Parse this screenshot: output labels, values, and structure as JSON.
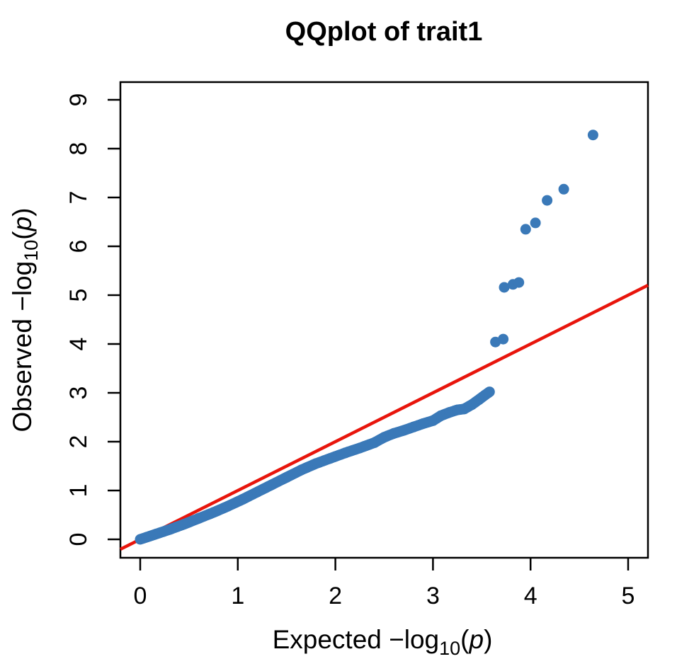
{
  "chart_data": {
    "type": "scatter",
    "title": "QQplot of trait1",
    "xlabel": "Expected −log10(p)",
    "ylabel": "Observed −log10(p)",
    "xlim": [
      0,
      5
    ],
    "ylim": [
      0,
      9
    ],
    "xticks": [
      0,
      1,
      2,
      3,
      4,
      5
    ],
    "yticks": [
      0,
      1,
      2,
      3,
      4,
      5,
      6,
      7,
      8,
      9
    ],
    "grid": false,
    "legend": "none",
    "point_color": "#3a79b8",
    "line_color": "#e8150c",
    "axis_color": "#000000",
    "band_polyline_sample": [
      [
        0.0,
        0.0
      ],
      [
        0.15,
        0.1
      ],
      [
        0.3,
        0.2
      ],
      [
        0.45,
        0.31
      ],
      [
        0.6,
        0.43
      ],
      [
        0.75,
        0.55
      ],
      [
        0.9,
        0.68
      ],
      [
        1.05,
        0.82
      ],
      [
        1.2,
        0.97
      ],
      [
        1.35,
        1.12
      ],
      [
        1.5,
        1.27
      ],
      [
        1.65,
        1.42
      ],
      [
        1.8,
        1.55
      ],
      [
        1.95,
        1.66
      ],
      [
        2.1,
        1.77
      ],
      [
        2.25,
        1.87
      ],
      [
        2.4,
        1.98
      ],
      [
        2.5,
        2.09
      ],
      [
        2.6,
        2.17
      ],
      [
        2.7,
        2.23
      ],
      [
        2.8,
        2.3
      ],
      [
        2.9,
        2.37
      ],
      [
        3.0,
        2.43
      ],
      [
        3.08,
        2.53
      ],
      [
        3.17,
        2.6
      ],
      [
        3.25,
        2.65
      ],
      [
        3.32,
        2.67
      ],
      [
        3.4,
        2.76
      ],
      [
        3.47,
        2.86
      ],
      [
        3.53,
        2.95
      ],
      [
        3.58,
        3.02
      ]
    ],
    "tail_points": [
      [
        3.64,
        4.04
      ],
      [
        3.72,
        4.1
      ],
      [
        3.73,
        5.16
      ],
      [
        3.82,
        5.22
      ],
      [
        3.88,
        5.26
      ],
      [
        3.95,
        6.35
      ],
      [
        4.05,
        6.48
      ],
      [
        4.17,
        6.94
      ],
      [
        4.34,
        7.17
      ],
      [
        4.64,
        8.28
      ]
    ],
    "reference_line": {
      "from": [
        -0.203,
        -0.203
      ],
      "to": [
        5.203,
        5.203
      ]
    }
  },
  "labels": {
    "title": "QQplot of trait1",
    "x_prefix": "Expected  −log",
    "y_prefix": "Observed  −log",
    "log_sub": "10",
    "open_paren": "(",
    "p_var": "p",
    "close_paren": ")"
  }
}
